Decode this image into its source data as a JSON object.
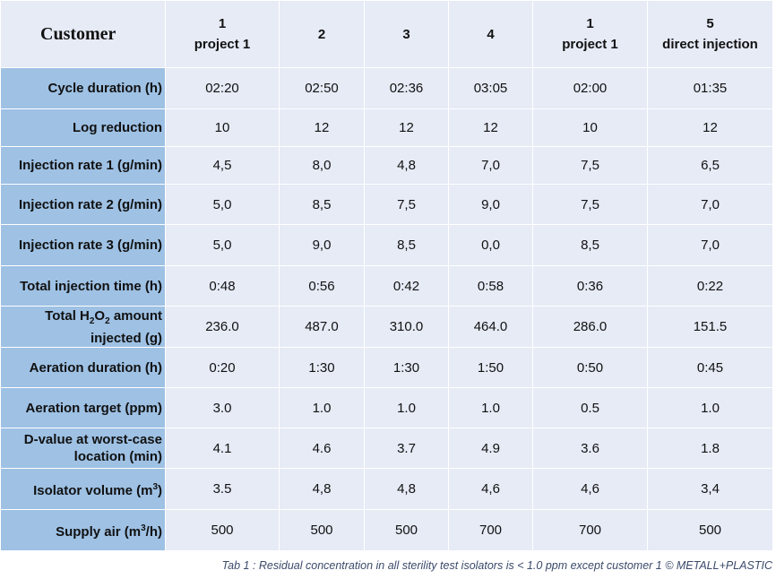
{
  "header": {
    "customer_label": "Customer",
    "columns": [
      {
        "line1": "1",
        "line2": "project 1"
      },
      {
        "line1": "",
        "line2": "2"
      },
      {
        "line1": "",
        "line2": "3"
      },
      {
        "line1": "",
        "line2": "4"
      },
      {
        "line1": "1",
        "line2": "project 1"
      },
      {
        "line1": "5",
        "line2": "direct injection"
      }
    ]
  },
  "rows": [
    {
      "label": "Cycle duration (h)",
      "values": [
        "02:20",
        "02:50",
        "02:36",
        "03:05",
        "02:00",
        "01:35"
      ]
    },
    {
      "label": "Log reduction",
      "values": [
        "10",
        "12",
        "12",
        "12",
        "10",
        "12"
      ]
    },
    {
      "label": "Injection rate 1 (g/min)",
      "values": [
        "4,5",
        "8,0",
        "4,8",
        "7,0",
        "7,5",
        "6,5"
      ]
    },
    {
      "label": "Injection rate 2 (g/min)",
      "values": [
        "5,0",
        "8,5",
        "7,5",
        "9,0",
        "7,5",
        "7,0"
      ]
    },
    {
      "label": "Injection rate 3 (g/min)",
      "values": [
        "5,0",
        "9,0",
        "8,5",
        "0,0",
        "8,5",
        "7,0"
      ]
    },
    {
      "label": "Total injection time  (h)",
      "values": [
        "0:48",
        "0:56",
        "0:42",
        "0:58",
        "0:36",
        "0:22"
      ]
    },
    {
      "label_parts": [
        "Total H",
        "2",
        "O",
        "2",
        " amount",
        "injected (g)"
      ],
      "values": [
        "236.0",
        "487.0",
        "310.0",
        "464.0",
        "286.0",
        "151.5"
      ]
    },
    {
      "label": "Aeration duration (h)",
      "values": [
        "0:20",
        "1:30",
        "1:30",
        "1:50",
        "0:50",
        "0:45"
      ]
    },
    {
      "label": "Aeration target (ppm)",
      "values": [
        "3.0",
        "1.0",
        "1.0",
        "1.0",
        "0.5",
        "1.0"
      ]
    },
    {
      "label_lines": [
        "D-value at worst-case",
        "location (min)"
      ],
      "values": [
        "4.1",
        "4.6",
        "3.7",
        "4.9",
        "3.6",
        "1.8"
      ]
    },
    {
      "label_parts": [
        "Isolator volume (m",
        "3",
        ")"
      ],
      "values": [
        "3.5",
        "4,8",
        "4,8",
        "4,6",
        "4,6",
        "3,4"
      ]
    },
    {
      "label_parts": [
        "Supply air (m",
        "3",
        "/h)"
      ],
      "values": [
        "500",
        "500",
        "500",
        "700",
        "700",
        "500"
      ]
    }
  ],
  "caption": "Tab 1 : Residual concentration in all sterility test isolators is < 1.0 ppm except customer 1 © METALL+PLASTIC",
  "colors": {
    "header_bg": "#e6ebf6",
    "label_bg": "#9ec1e4",
    "cell_bg": "#e6ebf6",
    "caption": "#3b4a6a"
  }
}
